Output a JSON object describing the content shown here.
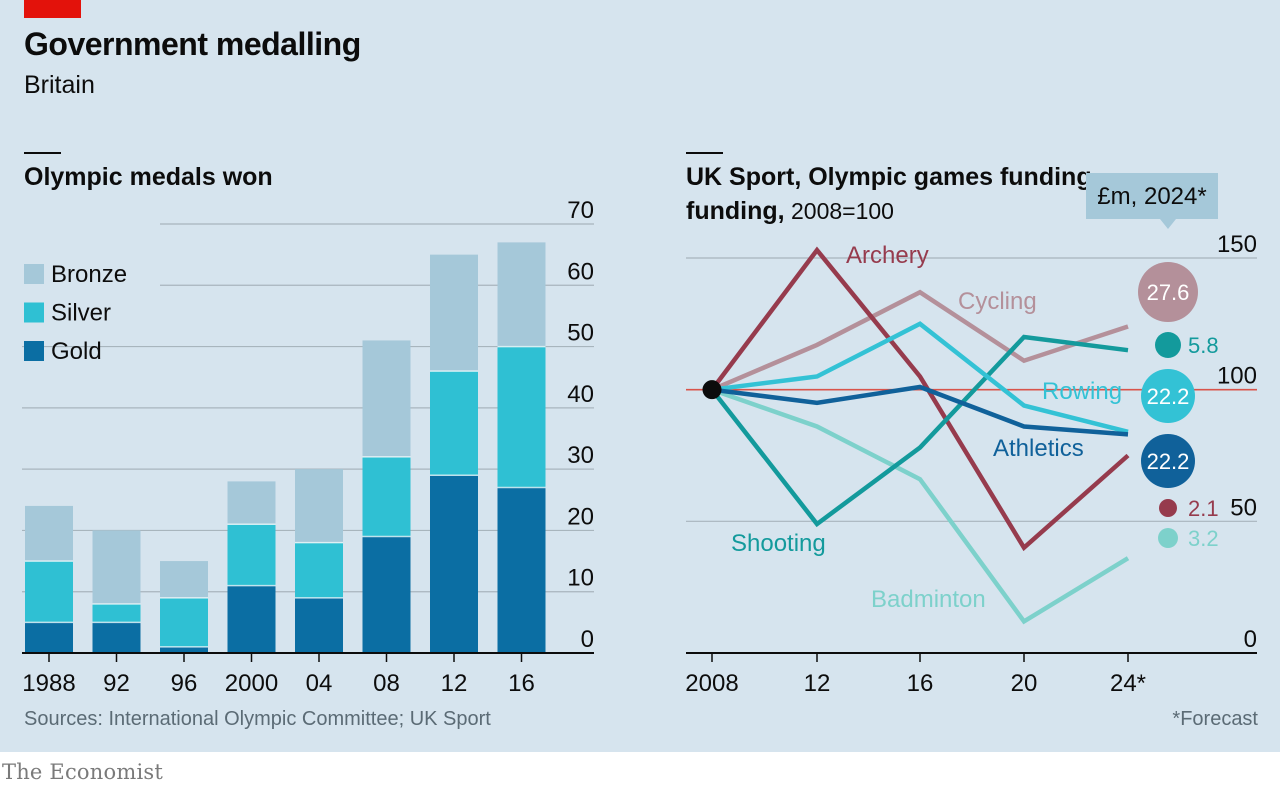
{
  "title": "Government medalling",
  "subtitle": "Britain",
  "sources": "Sources: International Olympic Committee; UK Sport",
  "footnote": "*Forecast",
  "logo": "The Economist",
  "colors": {
    "background": "#d6e4ee",
    "brand_red": "#e3120b",
    "bronze": "#a5c8d9",
    "silver": "#2fc0d3",
    "gold": "#0b6ea3",
    "archery": "#963b4d",
    "cycling": "#b4909a",
    "rowing": "#33c2d5",
    "athletics": "#10619a",
    "shooting": "#139a9c",
    "badminton": "#7dd1cb",
    "reference_line": "#d9534a"
  },
  "chart_data": [
    {
      "type": "bar",
      "stacked": true,
      "title": "Olympic medals won",
      "categories": [
        "1988",
        "92",
        "96",
        "2000",
        "04",
        "08",
        "12",
        "16"
      ],
      "series": [
        {
          "name": "Gold",
          "values": [
            5,
            5,
            1,
            11,
            9,
            19,
            29,
            27
          ]
        },
        {
          "name": "Silver",
          "values": [
            10,
            3,
            8,
            10,
            9,
            13,
            17,
            23
          ]
        },
        {
          "name": "Bronze",
          "values": [
            9,
            12,
            6,
            7,
            12,
            19,
            19,
            17
          ]
        }
      ],
      "ylim": [
        0,
        70
      ],
      "yticks": [
        0,
        10,
        20,
        30,
        40,
        50,
        60,
        70
      ],
      "y_axis_side": "right",
      "grid": true,
      "legend": "top-left",
      "legend_entries": [
        "Bronze",
        "Silver",
        "Gold"
      ]
    },
    {
      "type": "line",
      "title": "UK Sport, Olympic games funding,",
      "subtitle": "2008=100",
      "x": [
        "2008",
        "12",
        "16",
        "20",
        "24*"
      ],
      "series": [
        {
          "name": "Archery",
          "values": [
            100,
            153,
            105,
            40,
            75
          ],
          "value_2024": "2.1"
        },
        {
          "name": "Cycling",
          "values": [
            100,
            117,
            137,
            111,
            124
          ],
          "value_2024": "27.6"
        },
        {
          "name": "Rowing",
          "values": [
            100,
            105,
            125,
            94,
            84
          ],
          "value_2024": "22.2"
        },
        {
          "name": "Athletics",
          "values": [
            100,
            95,
            101,
            86,
            83
          ],
          "value_2024": "22.2"
        },
        {
          "name": "Shooting",
          "values": [
            100,
            49,
            78,
            120,
            115
          ],
          "value_2024": "5.8"
        },
        {
          "name": "Badminton",
          "values": [
            100,
            86,
            66,
            12,
            36
          ],
          "value_2024": "3.2"
        }
      ],
      "ylim": [
        0,
        150
      ],
      "yticks": [
        0,
        50,
        100,
        150
      ],
      "y_axis_side": "right",
      "reference_value": 100,
      "grid": true,
      "bubble_header": "£m, 2024*"
    }
  ]
}
